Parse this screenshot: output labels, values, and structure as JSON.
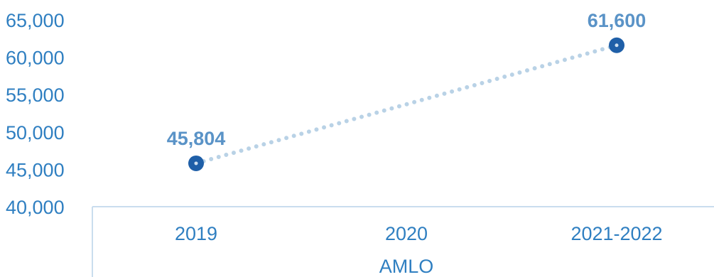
{
  "chart_data": {
    "type": "line",
    "categories": [
      "2019",
      "2020",
      "2021-2022"
    ],
    "category_group": "AMLO",
    "series": [
      {
        "points": [
          {
            "category": "2019",
            "value": 45804,
            "label": "45,804"
          },
          {
            "category": "2021-2022",
            "value": 61600,
            "label": "61,600"
          }
        ]
      }
    ],
    "yticks": [
      "40,000",
      "45,000",
      "50,000",
      "55,000",
      "60,000",
      "65,000"
    ],
    "ylim": [
      40000,
      65000
    ],
    "grid": false,
    "line_style": "dotted",
    "colors": {
      "axis_text": "#2f7fc1",
      "data_label": "#5a93c7",
      "marker": "#1f5fa8",
      "line": "#b9d2e6",
      "axis_line": "#c9ddee"
    }
  }
}
